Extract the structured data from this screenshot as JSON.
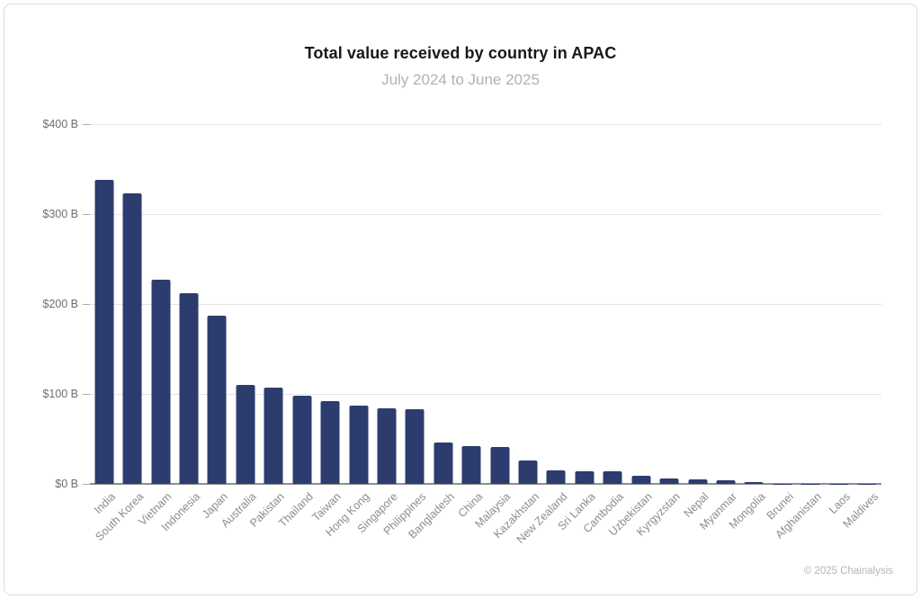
{
  "page": {
    "copyright": "© 2025 Chainalysis"
  },
  "colors": {
    "bar": "#2d3c6e",
    "title": "#16181e",
    "subtitle": "#b1b1b1",
    "axis_label": "#6e6e6e",
    "x_tick_label": "#8c8c8c",
    "gridline": "#e4e4e4",
    "baseline": "#8f8f8f",
    "border": "#dcdcdc",
    "copyright": "#b5b5b5"
  },
  "chart_data": {
    "type": "bar",
    "title": "Total value received by country in APAC",
    "subtitle": "July 2024 to June 2025",
    "unit": "USD billions",
    "categories": [
      "India",
      "South Korea",
      "Vietnam",
      "Indonesia",
      "Japan",
      "Australia",
      "Pakistan",
      "Thailand",
      "Taiwan",
      "Hong Kong",
      "Singapore",
      "Philippines",
      "Bangladesh",
      "China",
      "Malaysia",
      "Kazakhstan",
      "New Zealand",
      "Sri Lanka",
      "Cambodia",
      "Uzbekistan",
      "Kyrgyzstan",
      "Nepal",
      "Myanmar",
      "Mongolia",
      "Brunei",
      "Afghanistan",
      "Laos",
      "Maldives"
    ],
    "values": [
      338,
      323,
      227,
      212,
      187,
      110,
      107,
      98,
      92,
      87,
      84,
      83,
      46,
      42,
      41,
      26,
      15,
      14.5,
      14,
      9,
      6,
      5.5,
      4.5,
      2,
      0.5,
      0.4,
      0.3,
      0.2
    ],
    "xlabel": "",
    "ylabel": "",
    "ylim": [
      0,
      400
    ],
    "yticks": [
      0,
      100,
      200,
      300,
      400
    ],
    "ytick_labels": [
      "$0 B",
      "$100 B",
      "$200 B",
      "$300 B",
      "$400 B"
    ],
    "grid": true,
    "legend": false,
    "bar_color": "#2d3c6e"
  }
}
